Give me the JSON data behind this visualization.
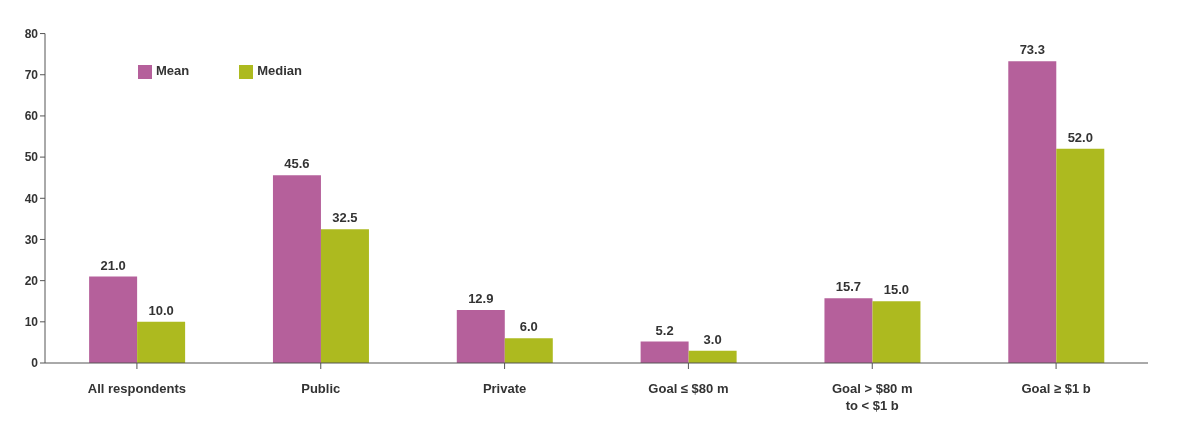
{
  "chart_data": {
    "type": "bar",
    "categories": [
      "All respondents",
      "Public",
      "Private",
      "Goal ≤ $80 m",
      "Goal > $80 m\nto < $1 b",
      "Goal ≥ $1 b"
    ],
    "series": [
      {
        "name": "Mean",
        "color": "#b5609b",
        "values": [
          21.0,
          45.6,
          12.9,
          5.2,
          15.7,
          73.3
        ],
        "value_labels": [
          "21.0",
          "45.6",
          "12.9",
          "5.2",
          "15.7",
          "73.3"
        ]
      },
      {
        "name": "Median",
        "color": "#adba1f",
        "values": [
          10.0,
          32.5,
          6.0,
          3.0,
          15.0,
          52.0
        ],
        "value_labels": [
          "10.0",
          "32.5",
          "6.0",
          "3.0",
          "15.0",
          "52.0"
        ]
      }
    ],
    "ylim": [
      0,
      80
    ],
    "yticks": [
      0,
      10,
      20,
      30,
      40,
      50,
      60,
      70,
      80
    ],
    "grid": false,
    "legend": "top left"
  }
}
